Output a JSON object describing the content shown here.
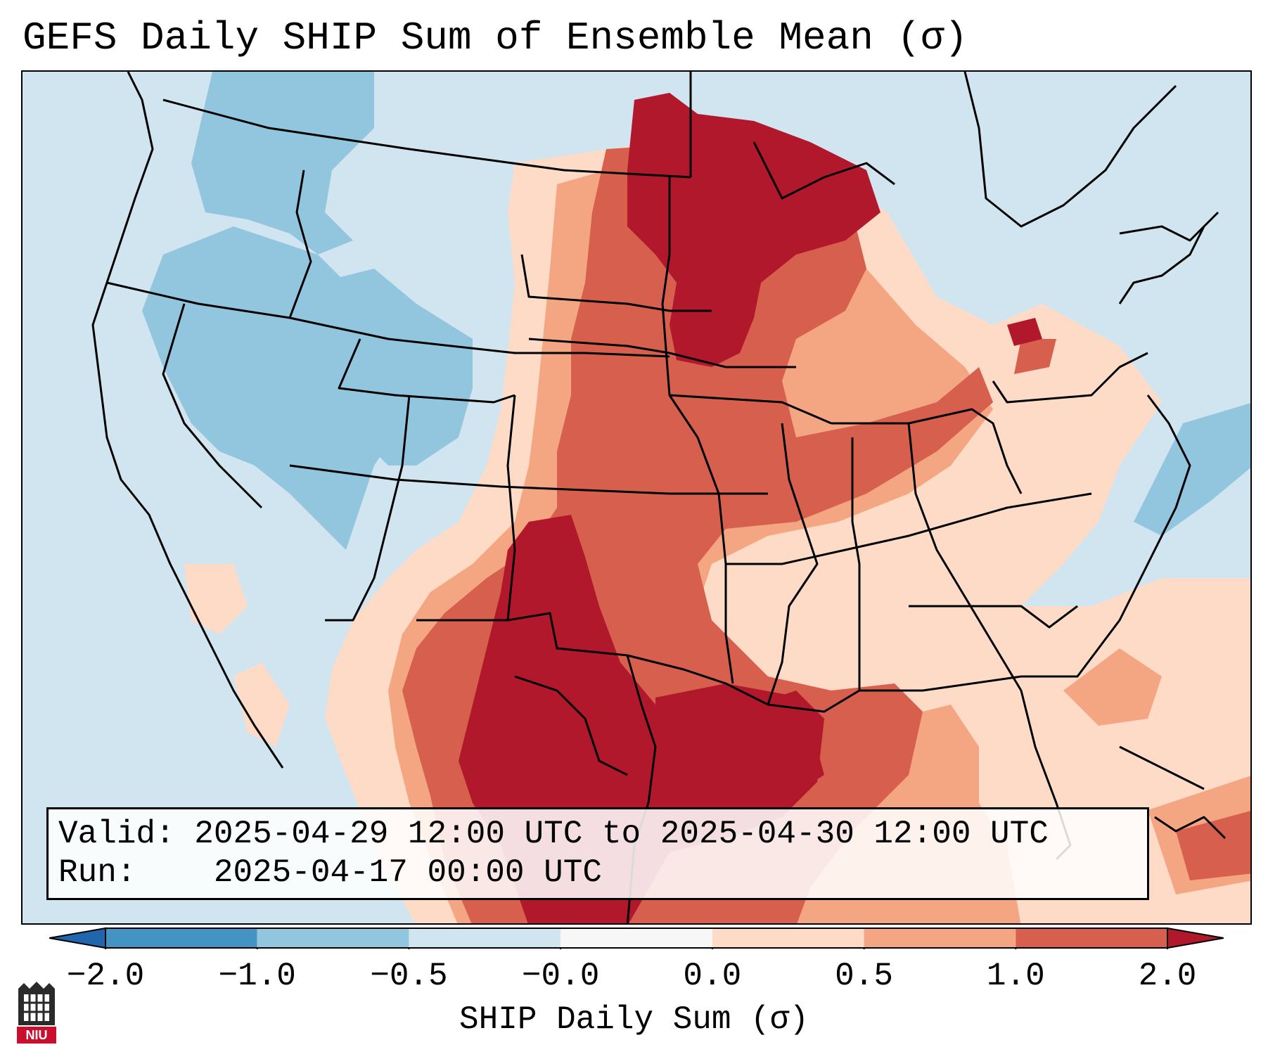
{
  "title": "GEFS Daily SHIP Sum of Ensemble Mean (σ)",
  "info": {
    "valid_label": "Valid:",
    "valid_value": "2025-04-29 12:00 UTC to 2025-04-30 12:00 UTC",
    "run_label": "Run:",
    "run_value": "2025-04-17 00:00 UTC"
  },
  "colorbar": {
    "label": "SHIP Daily Sum (σ)",
    "ticks": [
      "−2.0",
      "−1.0",
      "−0.5",
      "−0.0",
      "0.0",
      "0.5",
      "1.0",
      "2.0"
    ],
    "bins": [
      {
        "color": "#4393c3"
      },
      {
        "color": "#92c5de"
      },
      {
        "color": "#d1e5f0"
      },
      {
        "color": "#f7f7f7"
      },
      {
        "color": "#fddbc7"
      },
      {
        "color": "#f4a582"
      },
      {
        "color": "#d6604d"
      }
    ],
    "under_color": "#2166ac",
    "over_color": "#b2182b"
  },
  "logo": {
    "text": "NIU",
    "icon": "niu-logo-icon"
  },
  "map": {
    "region": "Continental United States",
    "dominant_pattern": "Highest SHIP values (>2σ) over Texas, Oklahoma, western Gulf and northern Plains/Minnesota; negative values over the Intermountain West and Pacific Northwest"
  }
}
